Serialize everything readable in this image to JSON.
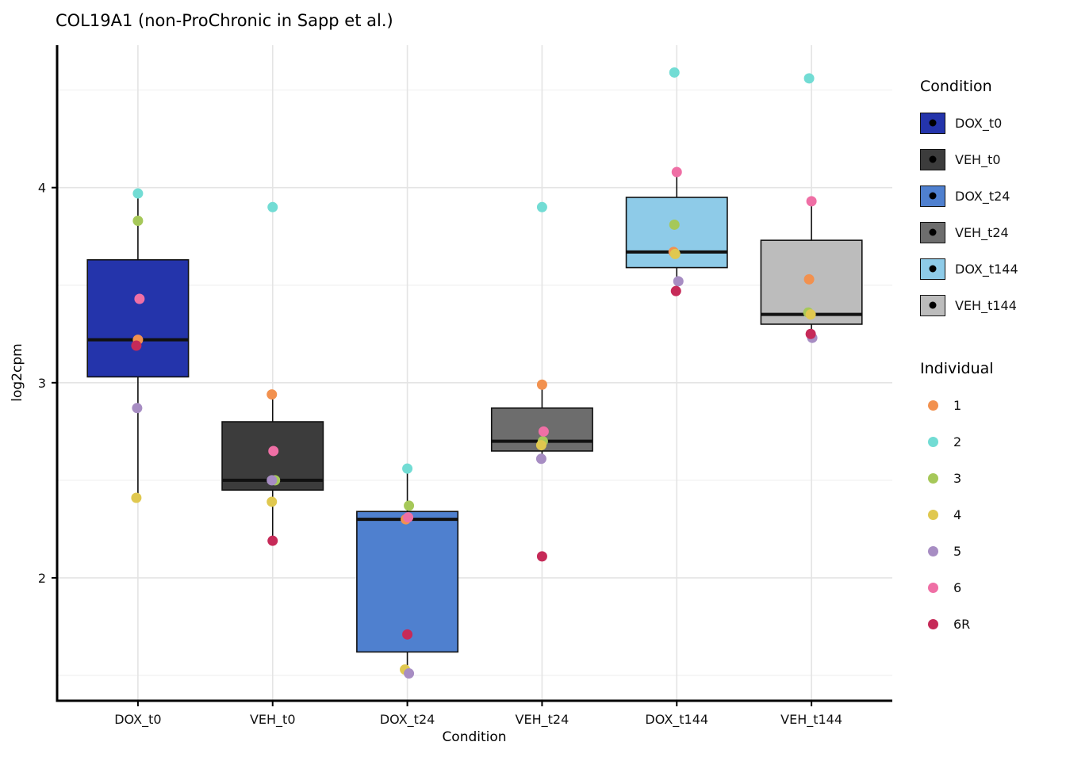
{
  "title": "COL19A1 (non-ProChronic in Sapp et al.)",
  "legend": {
    "condition_title": "Condition",
    "individual_title": "Individual"
  },
  "chart_data": {
    "type": "boxplot",
    "title": "COL19A1 (non-ProChronic in Sapp et al.)",
    "xlabel": "Condition",
    "ylabel": "log2cpm",
    "ylim": [
      1.37,
      4.73
    ],
    "yticks": [
      2,
      3,
      4
    ],
    "yminor": [
      1.5,
      2.5,
      3.5,
      4.5
    ],
    "grid": "on",
    "legend_position": "right",
    "categories": [
      "DOX_t0",
      "VEH_t0",
      "DOX_t24",
      "VEH_t24",
      "DOX_t144",
      "VEH_t144"
    ],
    "box_colors": [
      "#2434ab",
      "#3c3c3c",
      "#4f80cf",
      "#6d6d6d",
      "#8ecbe8",
      "#bcbcbc"
    ],
    "boxes": [
      {
        "condition": "DOX_t0",
        "lower_whisker": 2.41,
        "q1": 3.03,
        "median": 3.22,
        "q3": 3.63,
        "upper_whisker": 3.97
      },
      {
        "condition": "VEH_t0",
        "lower_whisker": 2.19,
        "q1": 2.45,
        "median": 2.5,
        "q3": 2.8,
        "upper_whisker": 2.94
      },
      {
        "condition": "DOX_t24",
        "lower_whisker": 1.51,
        "q1": 1.62,
        "median": 2.3,
        "q3": 2.34,
        "upper_whisker": 2.56
      },
      {
        "condition": "VEH_t24",
        "lower_whisker": 2.61,
        "q1": 2.65,
        "median": 2.7,
        "q3": 2.87,
        "upper_whisker": 2.99
      },
      {
        "condition": "DOX_t144",
        "lower_whisker": 3.47,
        "q1": 3.59,
        "median": 3.67,
        "q3": 3.95,
        "upper_whisker": 4.08
      },
      {
        "condition": "VEH_t144",
        "lower_whisker": 3.23,
        "q1": 3.3,
        "median": 3.35,
        "q3": 3.73,
        "upper_whisker": 3.93
      }
    ],
    "individuals": [
      {
        "id": "1",
        "color": "#f2914f"
      },
      {
        "id": "2",
        "color": "#72dcd4"
      },
      {
        "id": "3",
        "color": "#a6c859"
      },
      {
        "id": "4",
        "color": "#e0c84f"
      },
      {
        "id": "5",
        "color": "#a78dc3"
      },
      {
        "id": "6",
        "color": "#ef6fa5"
      },
      {
        "id": "6R",
        "color": "#c62a58"
      }
    ],
    "points": [
      {
        "condition": "DOX_t0",
        "individual": "1",
        "value": 3.22,
        "dx": 0
      },
      {
        "condition": "DOX_t0",
        "individual": "2",
        "value": 3.97,
        "dx": 0
      },
      {
        "condition": "DOX_t0",
        "individual": "3",
        "value": 3.83,
        "dx": 0
      },
      {
        "condition": "DOX_t0",
        "individual": "4",
        "value": 2.41,
        "dx": -2
      },
      {
        "condition": "DOX_t0",
        "individual": "5",
        "value": 2.87,
        "dx": -1
      },
      {
        "condition": "DOX_t0",
        "individual": "6",
        "value": 3.43,
        "dx": 2
      },
      {
        "condition": "DOX_t0",
        "individual": "6R",
        "value": 3.19,
        "dx": -2
      },
      {
        "condition": "VEH_t0",
        "individual": "1",
        "value": 2.94,
        "dx": -1
      },
      {
        "condition": "VEH_t0",
        "individual": "2",
        "value": 3.9,
        "dx": 0
      },
      {
        "condition": "VEH_t0",
        "individual": "3",
        "value": 2.5,
        "dx": 3
      },
      {
        "condition": "VEH_t0",
        "individual": "4",
        "value": 2.39,
        "dx": -1
      },
      {
        "condition": "VEH_t0",
        "individual": "5",
        "value": 2.5,
        "dx": -1
      },
      {
        "condition": "VEH_t0",
        "individual": "6",
        "value": 2.65,
        "dx": 1
      },
      {
        "condition": "VEH_t0",
        "individual": "6R",
        "value": 2.19,
        "dx": 0
      },
      {
        "condition": "DOX_t24",
        "individual": "1",
        "value": 2.3,
        "dx": -2
      },
      {
        "condition": "DOX_t24",
        "individual": "2",
        "value": 2.56,
        "dx": 0
      },
      {
        "condition": "DOX_t24",
        "individual": "3",
        "value": 2.37,
        "dx": 2
      },
      {
        "condition": "DOX_t24",
        "individual": "4",
        "value": 1.53,
        "dx": -3
      },
      {
        "condition": "DOX_t24",
        "individual": "5",
        "value": 1.51,
        "dx": 2
      },
      {
        "condition": "DOX_t24",
        "individual": "6",
        "value": 2.31,
        "dx": 1
      },
      {
        "condition": "DOX_t24",
        "individual": "6R",
        "value": 1.71,
        "dx": 0
      },
      {
        "condition": "VEH_t24",
        "individual": "1",
        "value": 2.99,
        "dx": 0
      },
      {
        "condition": "VEH_t24",
        "individual": "2",
        "value": 3.9,
        "dx": 0
      },
      {
        "condition": "VEH_t24",
        "individual": "3",
        "value": 2.7,
        "dx": 1
      },
      {
        "condition": "VEH_t24",
        "individual": "4",
        "value": 2.68,
        "dx": -1
      },
      {
        "condition": "VEH_t24",
        "individual": "5",
        "value": 2.61,
        "dx": -1
      },
      {
        "condition": "VEH_t24",
        "individual": "6",
        "value": 2.75,
        "dx": 2
      },
      {
        "condition": "VEH_t24",
        "individual": "6R",
        "value": 2.11,
        "dx": 0
      },
      {
        "condition": "DOX_t144",
        "individual": "1",
        "value": 3.67,
        "dx": -4
      },
      {
        "condition": "DOX_t144",
        "individual": "2",
        "value": 4.59,
        "dx": -3
      },
      {
        "condition": "DOX_t144",
        "individual": "3",
        "value": 3.81,
        "dx": -3
      },
      {
        "condition": "DOX_t144",
        "individual": "4",
        "value": 3.66,
        "dx": -2
      },
      {
        "condition": "DOX_t144",
        "individual": "5",
        "value": 3.52,
        "dx": 2
      },
      {
        "condition": "DOX_t144",
        "individual": "6",
        "value": 4.08,
        "dx": 0
      },
      {
        "condition": "DOX_t144",
        "individual": "6R",
        "value": 3.47,
        "dx": -1
      },
      {
        "condition": "VEH_t144",
        "individual": "1",
        "value": 3.53,
        "dx": -3
      },
      {
        "condition": "VEH_t144",
        "individual": "2",
        "value": 4.56,
        "dx": -3
      },
      {
        "condition": "VEH_t144",
        "individual": "3",
        "value": 3.36,
        "dx": -4
      },
      {
        "condition": "VEH_t144",
        "individual": "4",
        "value": 3.35,
        "dx": -1
      },
      {
        "condition": "VEH_t144",
        "individual": "5",
        "value": 3.23,
        "dx": 1
      },
      {
        "condition": "VEH_t144",
        "individual": "6",
        "value": 3.93,
        "dx": 0
      },
      {
        "condition": "VEH_t144",
        "individual": "6R",
        "value": 3.25,
        "dx": -1
      }
    ]
  }
}
